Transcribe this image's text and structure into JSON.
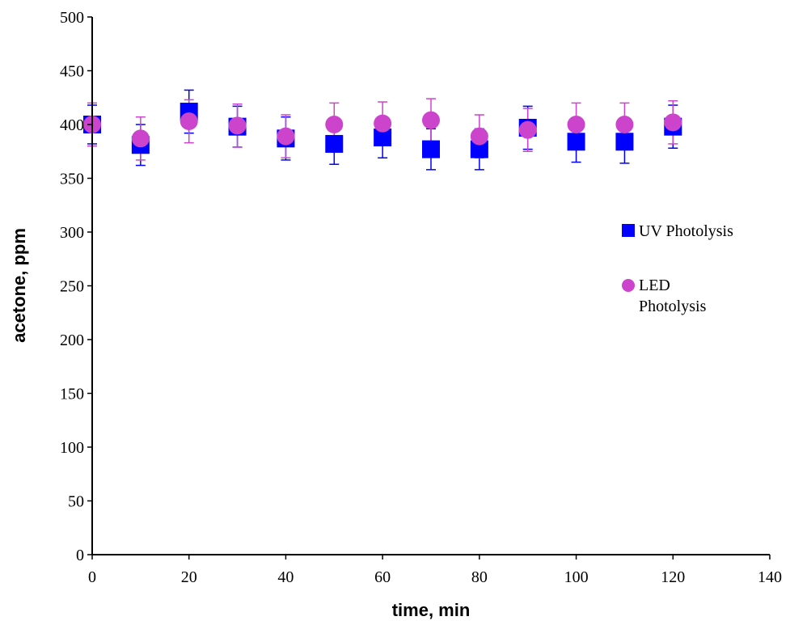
{
  "chart_data": {
    "type": "scatter",
    "xlabel": "time, min",
    "ylabel": "acetone, ppm",
    "xlim": [
      0,
      140
    ],
    "ylim": [
      0,
      500
    ],
    "x_ticks": [
      0,
      20,
      40,
      60,
      80,
      100,
      120,
      140
    ],
    "y_ticks": [
      0,
      50,
      100,
      150,
      200,
      250,
      300,
      350,
      400,
      450,
      500
    ],
    "grid": false,
    "legend_position": "right",
    "series": [
      {
        "name": "UV Photolysis",
        "marker": "square",
        "color": "#0000ff",
        "x": [
          0,
          10,
          20,
          30,
          40,
          50,
          60,
          70,
          80,
          90,
          100,
          110,
          120
        ],
        "y": [
          400,
          381,
          412,
          398,
          387,
          382,
          388,
          377,
          377,
          397,
          384,
          384,
          398
        ],
        "error": [
          18,
          19,
          20,
          19,
          20,
          19,
          19,
          19,
          19,
          20,
          19,
          20,
          20
        ]
      },
      {
        "name": "LED Photolysis",
        "marker": "circle",
        "color": "#cc44cc",
        "x": [
          0,
          10,
          20,
          30,
          40,
          50,
          60,
          70,
          80,
          90,
          100,
          110,
          120
        ],
        "y": [
          400,
          387,
          403,
          399,
          389,
          400,
          401,
          404,
          389,
          395,
          400,
          400,
          402
        ],
        "error": [
          20,
          20,
          20,
          20,
          20,
          20,
          20,
          20,
          20,
          20,
          20,
          20,
          20
        ]
      }
    ]
  }
}
